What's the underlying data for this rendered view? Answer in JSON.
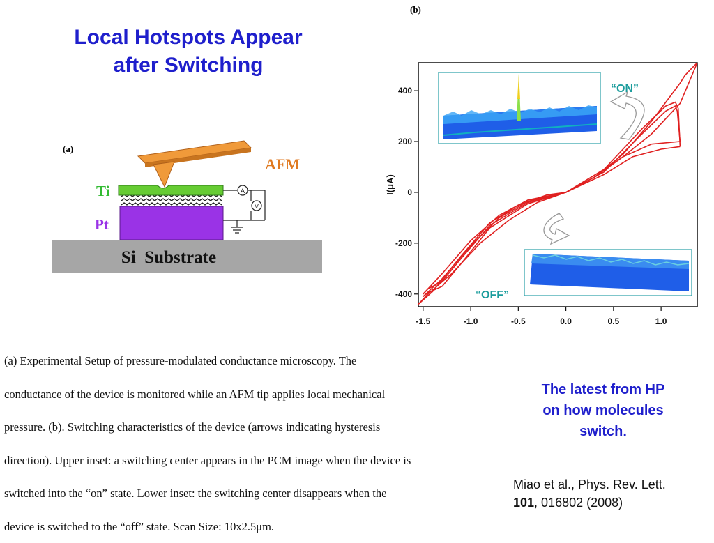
{
  "slide": {
    "title_line1": "Local Hotspots Appear",
    "title_line2": "after Switching",
    "colors": {
      "title": "#1f1fcc",
      "curve": "#e02020",
      "annotation": "#1a9c9c"
    }
  },
  "figure_a": {
    "panel_label": "(a)",
    "labels": {
      "afm": "AFM",
      "ti": "Ti",
      "pt": "Pt",
      "substrate": "Si  Substrate",
      "ammeter": "A",
      "voltmeter": "V"
    }
  },
  "figure_b": {
    "panel_label": "(b)",
    "on_label": "“ON”",
    "off_label": "“OFF”"
  },
  "chart_data": {
    "type": "line",
    "title": "",
    "xlabel": "",
    "ylabel": "I(μA)",
    "xlim": [
      -1.55,
      1.38
    ],
    "ylim": [
      -450,
      510
    ],
    "x_ticks": [
      "-1.5",
      "-1.0",
      "-0.5",
      "0.0",
      "0.5",
      "1.0"
    ],
    "x_tick_values": [
      -1.5,
      -1.0,
      -0.5,
      0.0,
      0.5,
      1.0
    ],
    "y_ticks": [
      "400",
      "200",
      "0",
      "-200",
      "-400"
    ],
    "y_tick_values": [
      400,
      200,
      0,
      -200,
      -400
    ],
    "grid": false,
    "series": [
      {
        "values_x": [
          0.0,
          0.3,
          0.6,
          0.9,
          1.1,
          1.2,
          1.25,
          1.3,
          1.38
        ],
        "values_y": [
          0,
          60,
          150,
          280,
          380,
          430,
          460,
          480,
          510
        ]
      },
      {
        "values_x": [
          1.38,
          1.2,
          0.9,
          0.6,
          0.3,
          0.0
        ],
        "values_y": [
          510,
          350,
          230,
          140,
          60,
          0
        ]
      },
      {
        "values_x": [
          0.0,
          0.4,
          0.8,
          1.05,
          1.15,
          1.18,
          1.2
        ],
        "values_y": [
          0,
          90,
          250,
          340,
          355,
          330,
          180
        ]
      },
      {
        "values_x": [
          1.2,
          1.0,
          0.7,
          0.4,
          0.0
        ],
        "values_y": [
          180,
          170,
          140,
          70,
          0
        ]
      },
      {
        "values_x": [
          0.0,
          0.4,
          0.8,
          1.05,
          1.15,
          1.17,
          1.2
        ],
        "values_y": [
          0,
          80,
          230,
          320,
          340,
          320,
          200
        ]
      },
      {
        "values_x": [
          1.2,
          0.9,
          0.6,
          0.3,
          0.0
        ],
        "values_y": [
          200,
          190,
          140,
          60,
          0
        ]
      },
      {
        "values_x": [
          0.0,
          -0.3,
          -0.6,
          -0.9,
          -1.2,
          -1.45,
          -1.55
        ],
        "values_y": [
          0,
          -40,
          -110,
          -200,
          -320,
          -400,
          -440
        ]
      },
      {
        "values_x": [
          -1.55,
          -1.4,
          -1.1,
          -0.8,
          -0.5,
          -0.2,
          0.0
        ],
        "values_y": [
          -440,
          -390,
          -250,
          -120,
          -50,
          -10,
          0
        ]
      },
      {
        "values_x": [
          0.0,
          -0.4,
          -0.8,
          -1.1,
          -1.3,
          -1.45,
          -1.5
        ],
        "values_y": [
          0,
          -40,
          -130,
          -260,
          -350,
          -380,
          -400
        ]
      },
      {
        "values_x": [
          -1.5,
          -1.3,
          -1.0,
          -0.7,
          -0.4,
          0.0
        ],
        "values_y": [
          -400,
          -320,
          -190,
          -90,
          -30,
          0
        ]
      },
      {
        "values_x": [
          0.0,
          -0.4,
          -0.8,
          -1.1,
          -1.3,
          -1.45,
          -1.5
        ],
        "values_y": [
          0,
          -45,
          -140,
          -280,
          -370,
          -395,
          -410
        ]
      },
      {
        "values_x": [
          -1.5,
          -1.3,
          -1.0,
          -0.7,
          -0.4,
          0.0
        ],
        "values_y": [
          -410,
          -340,
          -210,
          -100,
          -35,
          0
        ]
      }
    ]
  },
  "caption": {
    "line1": "(a) Experimental Setup of pressure-modulated conductance microscopy. The",
    "line2": "conductance of the device is monitored while an AFM tip applies local mechanical",
    "line3": "pressure. (b). Switching characteristics of the device (arrows indicating hysteresis",
    "line4": "direction). Upper inset: a switching center appears in the PCM image when the device is",
    "line5": "switched into the “on” state. Lower inset: the switching center disappears when the",
    "line6": "device is switched to the “off” state. Scan Size: 10x2.5μm."
  },
  "note": {
    "line1": "The latest from HP",
    "line2": "on how molecules",
    "line3": "switch."
  },
  "reference": {
    "line1": "Miao et al., Phys. Rev. Lett.",
    "volume": "101",
    "rest": ", 016802 (2008)"
  }
}
